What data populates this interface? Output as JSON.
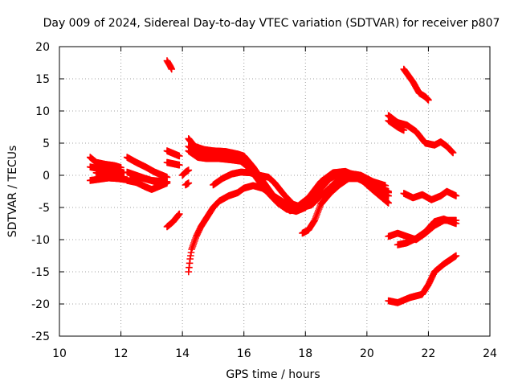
{
  "chart_data": {
    "type": "scatter",
    "title": "Day 009 of 2024, Sidereal Day-to-day VTEC variation (SDTVAR) for receiver p807",
    "xlabel": "GPS time / hours",
    "ylabel": "SDTVAR / TECUs",
    "xlim": [
      10,
      24
    ],
    "ylim": [
      -25,
      20
    ],
    "x_ticks": [
      10,
      12,
      14,
      16,
      18,
      20,
      22,
      24
    ],
    "y_ticks": [
      -25,
      -20,
      -15,
      -10,
      -5,
      0,
      5,
      10,
      15,
      20
    ],
    "grid": true,
    "marker": "+",
    "color": "#ff0000",
    "series": [
      {
        "points": [
          [
            11.0,
            2.8
          ],
          [
            11.2,
            2.0
          ],
          [
            11.5,
            1.7
          ],
          [
            11.8,
            1.5
          ],
          [
            12.0,
            1.2
          ]
        ]
      },
      {
        "points": [
          [
            11.0,
            1.3
          ],
          [
            11.3,
            1.0
          ],
          [
            11.6,
            0.8
          ],
          [
            11.9,
            0.6
          ],
          [
            12.1,
            0.4
          ]
        ]
      },
      {
        "points": [
          [
            11.0,
            -0.8
          ],
          [
            11.3,
            -0.6
          ],
          [
            11.6,
            -0.4
          ],
          [
            11.9,
            -0.5
          ],
          [
            12.2,
            -0.7
          ]
        ]
      },
      {
        "points": [
          [
            11.2,
            0.4
          ],
          [
            11.5,
            0.0
          ],
          [
            11.8,
            -0.3
          ],
          [
            12.1,
            -0.6
          ]
        ]
      },
      {
        "points": [
          [
            12.2,
            2.8
          ],
          [
            12.5,
            2.0
          ],
          [
            12.8,
            1.3
          ],
          [
            13.1,
            0.5
          ],
          [
            13.5,
            -0.3
          ]
        ]
      },
      {
        "points": [
          [
            12.2,
            0.5
          ],
          [
            12.5,
            0.0
          ],
          [
            12.8,
            -0.5
          ],
          [
            13.0,
            -0.8
          ],
          [
            13.5,
            -1.0
          ]
        ]
      },
      {
        "points": [
          [
            12.2,
            -0.8
          ],
          [
            12.5,
            -1.1
          ],
          [
            12.8,
            -1.8
          ],
          [
            13.0,
            -2.2
          ],
          [
            13.3,
            -1.6
          ],
          [
            13.5,
            -1.2
          ]
        ]
      },
      {
        "points": [
          [
            12.3,
            0.2
          ],
          [
            12.6,
            -0.3
          ],
          [
            12.9,
            -0.7
          ],
          [
            13.2,
            -1.1
          ],
          [
            13.4,
            -1.3
          ]
        ]
      },
      {
        "points": [
          [
            13.5,
            17.8
          ],
          [
            13.6,
            17.0
          ],
          [
            13.65,
            16.5
          ]
        ]
      },
      {
        "points": [
          [
            13.5,
            3.8
          ],
          [
            13.7,
            3.4
          ],
          [
            13.9,
            3.0
          ]
        ]
      },
      {
        "points": [
          [
            13.5,
            2.0
          ],
          [
            13.7,
            1.8
          ],
          [
            13.9,
            1.6
          ]
        ]
      },
      {
        "points": [
          [
            13.5,
            -8.0
          ],
          [
            13.7,
            -7.2
          ],
          [
            13.9,
            -6.0
          ]
        ]
      },
      {
        "points": [
          [
            14.0,
            0.0
          ],
          [
            14.1,
            0.5
          ],
          [
            14.2,
            0.8
          ]
        ]
      },
      {
        "points": [
          [
            14.1,
            -1.5
          ],
          [
            14.2,
            -1.2
          ]
        ]
      },
      {
        "points": [
          [
            14.2,
            -15.0
          ],
          [
            14.25,
            -13.0
          ],
          [
            14.3,
            -11.5
          ],
          [
            14.45,
            -9.5
          ],
          [
            14.6,
            -8.0
          ],
          [
            14.8,
            -6.5
          ],
          [
            15.0,
            -5.0
          ],
          [
            15.2,
            -4.0
          ],
          [
            15.5,
            -3.2
          ],
          [
            15.8,
            -2.7
          ],
          [
            16.0,
            -2.0
          ],
          [
            16.3,
            -1.6
          ],
          [
            16.6,
            -2.0
          ],
          [
            17.0,
            -3.3
          ],
          [
            17.4,
            -4.5
          ],
          [
            17.8,
            -4.8
          ],
          [
            18.2,
            -4.0
          ],
          [
            18.6,
            -2.8
          ],
          [
            19.0,
            -1.0
          ],
          [
            19.4,
            0.3
          ],
          [
            19.8,
            0.0
          ],
          [
            20.2,
            -1.0
          ],
          [
            20.6,
            -1.6
          ]
        ]
      },
      {
        "points": [
          [
            14.2,
            5.7
          ],
          [
            14.4,
            4.5
          ],
          [
            14.7,
            4.0
          ],
          [
            15.0,
            3.8
          ],
          [
            15.4,
            3.7
          ],
          [
            15.8,
            3.3
          ],
          [
            16.0,
            3.0
          ],
          [
            16.3,
            1.3
          ],
          [
            16.6,
            -0.8
          ],
          [
            16.9,
            -2.8
          ],
          [
            17.2,
            -4.5
          ],
          [
            17.5,
            -5.5
          ],
          [
            17.8,
            -5.2
          ],
          [
            18.2,
            -3.5
          ],
          [
            18.5,
            -1.2
          ],
          [
            18.9,
            0.2
          ],
          [
            19.2,
            0.5
          ],
          [
            19.5,
            0.2
          ],
          [
            19.9,
            -0.8
          ],
          [
            20.3,
            -1.8
          ],
          [
            20.7,
            -2.7
          ]
        ]
      },
      {
        "points": [
          [
            14.2,
            4.5
          ],
          [
            14.5,
            3.5
          ],
          [
            14.8,
            3.2
          ],
          [
            15.2,
            3.0
          ],
          [
            15.6,
            2.8
          ],
          [
            15.9,
            2.6
          ],
          [
            16.2,
            1.3
          ],
          [
            16.5,
            -0.5
          ],
          [
            16.8,
            -2.3
          ],
          [
            17.1,
            -4.0
          ],
          [
            17.4,
            -5.2
          ],
          [
            17.7,
            -5.6
          ],
          [
            18.0,
            -5.0
          ],
          [
            18.4,
            -2.6
          ],
          [
            18.8,
            -0.5
          ],
          [
            19.2,
            0.5
          ],
          [
            19.6,
            0.1
          ],
          [
            20.0,
            -1.3
          ],
          [
            20.4,
            -2.6
          ],
          [
            20.7,
            -3.2
          ]
        ]
      },
      {
        "points": [
          [
            14.2,
            3.8
          ],
          [
            14.5,
            2.8
          ],
          [
            14.8,
            2.6
          ],
          [
            15.2,
            2.6
          ],
          [
            15.6,
            2.4
          ],
          [
            15.9,
            2.2
          ],
          [
            16.2,
            1.0
          ],
          [
            16.5,
            -1.0
          ],
          [
            16.8,
            -2.8
          ],
          [
            17.1,
            -4.3
          ],
          [
            17.4,
            -5.3
          ],
          [
            17.7,
            -5.0
          ],
          [
            18.1,
            -3.5
          ],
          [
            18.5,
            -1.0
          ],
          [
            18.9,
            0.4
          ],
          [
            19.3,
            0.6
          ],
          [
            19.7,
            -0.2
          ],
          [
            20.2,
            -2.3
          ],
          [
            20.7,
            -4.3
          ]
        ]
      },
      {
        "points": [
          [
            15.0,
            -1.5
          ],
          [
            15.3,
            -0.5
          ],
          [
            15.6,
            0.2
          ],
          [
            15.9,
            0.5
          ],
          [
            16.2,
            0.4
          ],
          [
            16.5,
            0.0
          ],
          [
            16.8,
            -0.3
          ],
          [
            17.0,
            -1.2
          ],
          [
            17.3,
            -3.0
          ],
          [
            17.6,
            -4.5
          ],
          [
            17.9,
            -5.0
          ],
          [
            18.2,
            -4.6
          ],
          [
            18.5,
            -3.2
          ]
        ]
      },
      {
        "points": [
          [
            17.9,
            -9.0
          ],
          [
            18.1,
            -8.5
          ],
          [
            18.3,
            -7.0
          ],
          [
            18.5,
            -4.5
          ],
          [
            18.8,
            -2.8
          ],
          [
            19.1,
            -1.5
          ],
          [
            19.4,
            -0.5
          ],
          [
            19.7,
            -0.5
          ],
          [
            20.0,
            -1.2
          ],
          [
            20.4,
            -2.0
          ],
          [
            20.7,
            -2.5
          ]
        ]
      },
      {
        "points": [
          [
            21.2,
            16.5
          ],
          [
            21.5,
            14.5
          ],
          [
            21.7,
            12.8
          ],
          [
            21.9,
            12.2
          ],
          [
            22.0,
            11.7
          ]
        ]
      },
      {
        "points": [
          [
            20.7,
            9.3
          ],
          [
            21.0,
            8.2
          ],
          [
            21.3,
            7.8
          ],
          [
            21.6,
            6.8
          ],
          [
            21.9,
            5.0
          ],
          [
            22.2,
            4.7
          ],
          [
            22.4,
            5.2
          ],
          [
            22.6,
            4.5
          ],
          [
            22.8,
            3.5
          ]
        ]
      },
      {
        "points": [
          [
            20.7,
            8.5
          ],
          [
            21.0,
            7.5
          ],
          [
            21.2,
            7.0
          ]
        ]
      },
      {
        "points": [
          [
            21.2,
            -2.8
          ],
          [
            21.5,
            -3.5
          ],
          [
            21.8,
            -3.0
          ],
          [
            22.1,
            -3.8
          ],
          [
            22.4,
            -3.2
          ],
          [
            22.6,
            -2.5
          ],
          [
            22.9,
            -3.2
          ]
        ]
      },
      {
        "points": [
          [
            20.7,
            -9.5
          ],
          [
            21.0,
            -9.0
          ],
          [
            21.3,
            -9.5
          ],
          [
            21.6,
            -10.0
          ],
          [
            21.9,
            -9.0
          ],
          [
            22.2,
            -7.8
          ],
          [
            22.5,
            -7.0
          ],
          [
            22.9,
            -7.0
          ]
        ]
      },
      {
        "points": [
          [
            21.0,
            -10.8
          ],
          [
            21.3,
            -10.5
          ],
          [
            21.6,
            -9.8
          ],
          [
            21.9,
            -8.8
          ],
          [
            22.2,
            -7.2
          ],
          [
            22.5,
            -6.8
          ],
          [
            22.9,
            -7.5
          ]
        ]
      },
      {
        "points": [
          [
            20.7,
            -19.5
          ],
          [
            21.0,
            -19.8
          ],
          [
            21.4,
            -19.0
          ],
          [
            21.8,
            -18.5
          ],
          [
            22.0,
            -17.0
          ],
          [
            22.2,
            -15.0
          ],
          [
            22.5,
            -13.8
          ],
          [
            22.9,
            -12.5
          ]
        ]
      }
    ]
  }
}
